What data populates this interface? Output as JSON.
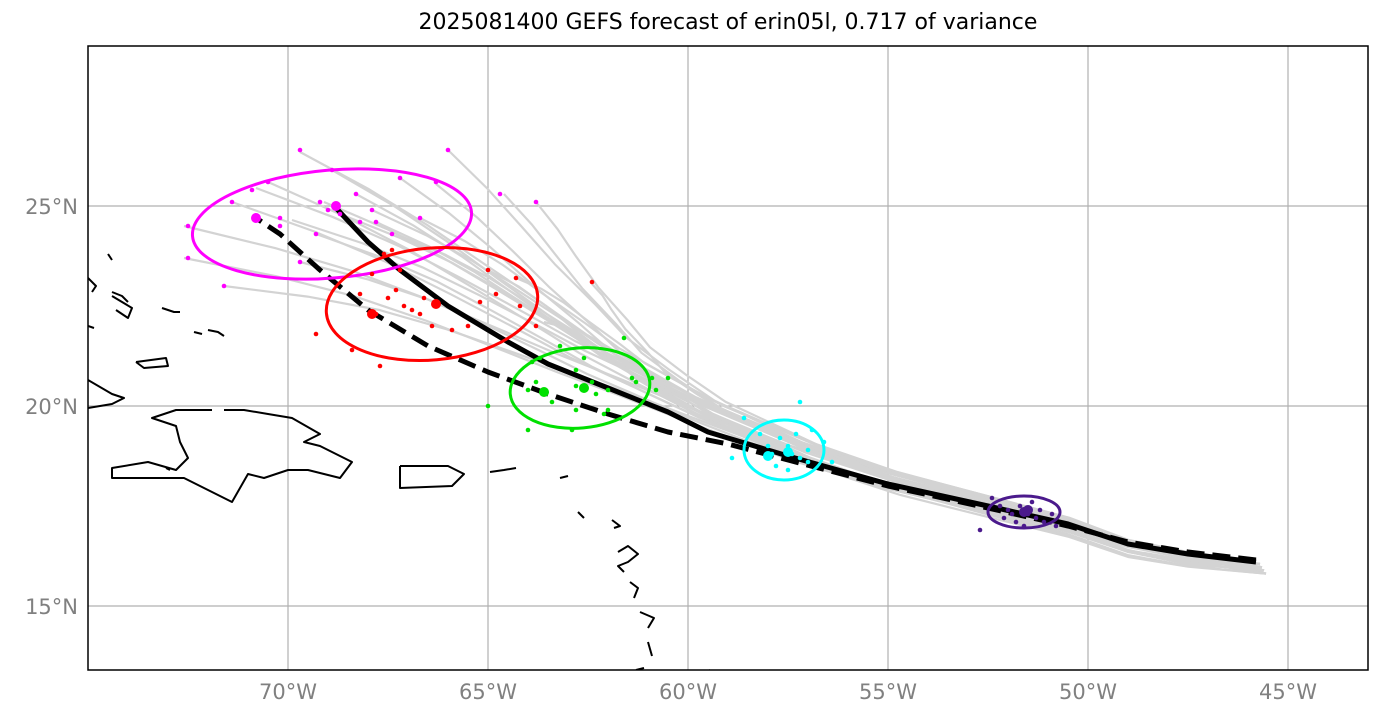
{
  "title": "2025081400 GEFS forecast of erin05l, 0.717 of variance",
  "map": {
    "lon_range": [
      -75,
      -43
    ],
    "lat_range": [
      13.4,
      29
    ],
    "grid": true,
    "lon_ticks": [
      {
        "value": -70,
        "label": "70°W"
      },
      {
        "value": -65,
        "label": "65°W"
      },
      {
        "value": -60,
        "label": "60°W"
      },
      {
        "value": -55,
        "label": "55°W"
      },
      {
        "value": -50,
        "label": "50°W"
      },
      {
        "value": -45,
        "label": "45°W"
      }
    ],
    "lat_ticks": [
      {
        "value": 25,
        "label": "25°N"
      },
      {
        "value": 20,
        "label": "20°N"
      },
      {
        "value": 15,
        "label": "15°N"
      }
    ],
    "colors": {
      "ensemble_track": "#d3d3d3",
      "mean_track": "#000000",
      "day1": "#4b1a8c",
      "day2": "#00ffff",
      "day3": "#00e000",
      "day4": "#ff0000",
      "day5": "#ff00ff",
      "coast": "#000000"
    },
    "mean_track_solid": [
      [
        -45.8,
        16.1
      ],
      [
        -47.5,
        16.3
      ],
      [
        -49,
        16.55
      ],
      [
        -50.5,
        17.05
      ],
      [
        -52.5,
        17.5
      ],
      [
        -55,
        18.05
      ],
      [
        -57.5,
        18.75
      ],
      [
        -59.5,
        19.35
      ],
      [
        -60.5,
        19.85
      ],
      [
        -62,
        20.45
      ],
      [
        -63.5,
        21.05
      ],
      [
        -64.5,
        21.6
      ],
      [
        -66,
        22.5
      ],
      [
        -67.2,
        23.4
      ],
      [
        -68,
        24.1
      ],
      [
        -68.8,
        24.95
      ]
    ],
    "mean_track_dashed": [
      [
        -45.8,
        16.15
      ],
      [
        -47.5,
        16.35
      ],
      [
        -49,
        16.6
      ],
      [
        -50.5,
        17.0
      ],
      [
        -52.5,
        17.45
      ],
      [
        -55,
        18.0
      ],
      [
        -57.5,
        18.65
      ],
      [
        -59,
        19.05
      ],
      [
        -60.5,
        19.35
      ],
      [
        -62,
        19.8
      ],
      [
        -63.5,
        20.3
      ],
      [
        -65,
        20.85
      ],
      [
        -66.5,
        21.5
      ],
      [
        -68,
        22.4
      ],
      [
        -69.2,
        23.4
      ],
      [
        -70.2,
        24.3
      ],
      [
        -70.8,
        24.7
      ]
    ],
    "ensemble_endpoints": [
      [
        -72.6,
        24.5
      ],
      [
        -72.6,
        23.7
      ],
      [
        -71.6,
        23.0
      ],
      [
        -71.4,
        25.1
      ],
      [
        -70.8,
        25.45
      ],
      [
        -70.5,
        25.6
      ],
      [
        -69.9,
        24.65
      ],
      [
        -69.7,
        23.6
      ],
      [
        -69.7,
        26.35
      ],
      [
        -69.3,
        24.3
      ],
      [
        -69.1,
        25.1
      ],
      [
        -68.9,
        25.9
      ],
      [
        -68.7,
        24.8
      ],
      [
        -68.3,
        25.3
      ],
      [
        -67.9,
        24.9
      ],
      [
        -67.8,
        24.6
      ],
      [
        -67.3,
        24.3
      ],
      [
        -67.2,
        25.7
      ],
      [
        -66.7,
        24.7
      ],
      [
        -66.3,
        25.55
      ],
      [
        -66.0,
        26.4
      ],
      [
        -64.6,
        25.3
      ],
      [
        -63.8,
        25.1
      ],
      [
        -65.0,
        23.4
      ],
      [
        -64.3,
        23.2
      ],
      [
        -63.6,
        22.1
      ],
      [
        -62.4,
        23.05
      ]
    ],
    "ellipses": [
      {
        "name": "day5",
        "center": [
          -68.9,
          24.55
        ],
        "rx_deg": 3.5,
        "ry_deg": 1.35,
        "angle": -5
      },
      {
        "name": "day4",
        "center": [
          -66.4,
          22.55
        ],
        "rx_deg": 2.65,
        "ry_deg": 1.4,
        "angle": -5
      },
      {
        "name": "day3",
        "center": [
          -62.7,
          20.45
        ],
        "rx_deg": 1.75,
        "ry_deg": 1.0,
        "angle": -5
      },
      {
        "name": "day2",
        "center": [
          -57.6,
          18.9
        ],
        "rx_deg": 1.0,
        "ry_deg": 0.75,
        "angle": 0
      },
      {
        "name": "day1",
        "center": [
          -51.6,
          17.35
        ],
        "rx_deg": 0.9,
        "ry_deg": 0.4,
        "angle": 0
      }
    ],
    "members": {
      "day5": [
        [
          -72.5,
          24.5
        ],
        [
          -72.5,
          23.7
        ],
        [
          -71.6,
          23.0
        ],
        [
          -71.4,
          25.1
        ],
        [
          -70.9,
          25.4
        ],
        [
          -70.5,
          25.6
        ],
        [
          -70.2,
          24.7
        ],
        [
          -70.2,
          24.5
        ],
        [
          -69.7,
          23.6
        ],
        [
          -69.7,
          26.4
        ],
        [
          -69.3,
          24.3
        ],
        [
          -69.2,
          25.1
        ],
        [
          -68.9,
          25.9
        ],
        [
          -68.7,
          24.8
        ],
        [
          -68.3,
          25.3
        ],
        [
          -67.9,
          24.9
        ],
        [
          -67.8,
          24.6
        ],
        [
          -67.4,
          24.3
        ],
        [
          -67.2,
          25.7
        ],
        [
          -66.7,
          24.7
        ],
        [
          -66.3,
          25.6
        ],
        [
          -66.0,
          26.4
        ],
        [
          -64.7,
          25.3
        ],
        [
          -63.8,
          25.1
        ],
        [
          -68.2,
          24.6
        ],
        [
          -69.0,
          24.9
        ]
      ],
      "day4": [
        [
          -69.3,
          21.8
        ],
        [
          -68.4,
          21.4
        ],
        [
          -67.7,
          21.0
        ],
        [
          -68.2,
          22.8
        ],
        [
          -67.9,
          23.3
        ],
        [
          -67.4,
          23.9
        ],
        [
          -67.2,
          23.4
        ],
        [
          -67.8,
          22.3
        ],
        [
          -67.5,
          22.7
        ],
        [
          -67.1,
          22.5
        ],
        [
          -66.9,
          22.4
        ],
        [
          -66.7,
          22.3
        ],
        [
          -66.4,
          22.0
        ],
        [
          -65.9,
          21.9
        ],
        [
          -66.6,
          22.7
        ],
        [
          -65.5,
          22.0
        ],
        [
          -65.2,
          22.6
        ],
        [
          -64.8,
          22.8
        ],
        [
          -64.2,
          22.5
        ],
        [
          -63.8,
          22.0
        ],
        [
          -65.0,
          23.4
        ],
        [
          -64.3,
          23.2
        ],
        [
          -62.4,
          23.1
        ],
        [
          -67.6,
          23.8
        ],
        [
          -67.3,
          22.9
        ]
      ],
      "day3": [
        [
          -65.0,
          20.0
        ],
        [
          -64.0,
          19.4
        ],
        [
          -63.8,
          20.6
        ],
        [
          -63.7,
          21.2
        ],
        [
          -63.4,
          20.1
        ],
        [
          -63.2,
          21.5
        ],
        [
          -62.9,
          19.4
        ],
        [
          -62.8,
          20.5
        ],
        [
          -62.8,
          19.9
        ],
        [
          -62.4,
          20.6
        ],
        [
          -62.6,
          21.2
        ],
        [
          -62.3,
          20.3
        ],
        [
          -62.0,
          20.4
        ],
        [
          -62.0,
          19.9
        ],
        [
          -61.6,
          21.7
        ],
        [
          -61.4,
          20.7
        ],
        [
          -61.3,
          20.6
        ],
        [
          -60.9,
          20.7
        ],
        [
          -60.8,
          20.4
        ],
        [
          -60.5,
          20.7
        ],
        [
          -62.8,
          20.9
        ],
        [
          -62.1,
          19.8
        ],
        [
          -63.9,
          21.1
        ],
        [
          -64.0,
          20.4
        ]
      ],
      "day2": [
        [
          -58.9,
          18.7
        ],
        [
          -58.6,
          19.7
        ],
        [
          -58.2,
          19.3
        ],
        [
          -58.0,
          19.0
        ],
        [
          -57.9,
          18.8
        ],
        [
          -57.7,
          19.2
        ],
        [
          -57.5,
          19.0
        ],
        [
          -57.5,
          18.4
        ],
        [
          -57.4,
          18.8
        ],
        [
          -57.2,
          18.7
        ],
        [
          -57.0,
          18.9
        ],
        [
          -56.9,
          19.4
        ],
        [
          -56.6,
          19.1
        ],
        [
          -56.4,
          18.6
        ],
        [
          -57.2,
          20.1
        ],
        [
          -57.8,
          18.5
        ],
        [
          -57.0,
          18.6
        ],
        [
          -57.3,
          19.3
        ]
      ],
      "day1": [
        [
          -52.7,
          16.9
        ],
        [
          -52.4,
          17.7
        ],
        [
          -52.2,
          17.5
        ],
        [
          -52.0,
          17.4
        ],
        [
          -51.9,
          17.3
        ],
        [
          -51.8,
          17.1
        ],
        [
          -51.7,
          17.5
        ],
        [
          -51.6,
          17.0
        ],
        [
          -51.4,
          17.6
        ],
        [
          -51.3,
          17.2
        ],
        [
          -51.2,
          17.4
        ],
        [
          -51.1,
          17.1
        ],
        [
          -50.9,
          17.3
        ],
        [
          -50.8,
          17.0
        ],
        [
          -51.5,
          17.3
        ],
        [
          -52.1,
          17.2
        ]
      ]
    },
    "mean_markers": [
      {
        "day": "day5",
        "solid": [
          -68.8,
          25.0
        ],
        "dashed": [
          -70.8,
          24.7
        ]
      },
      {
        "day": "day4",
        "solid": [
          -66.3,
          22.55
        ],
        "dashed": [
          -67.9,
          22.3
        ]
      },
      {
        "day": "day3",
        "solid": [
          -62.6,
          20.45
        ],
        "dashed": [
          -63.6,
          20.35
        ]
      },
      {
        "day": "day2",
        "solid": [
          -57.5,
          18.85
        ],
        "dashed": [
          -58.0,
          18.75
        ]
      },
      {
        "day": "day1",
        "solid": [
          -51.6,
          17.35
        ],
        "dashed": [
          -51.5,
          17.4
        ]
      }
    ],
    "coastlines": {
      "hispaniola": [
        [
          -71.9,
          19.9
        ],
        [
          -72.8,
          19.9
        ],
        [
          -73.4,
          19.7
        ],
        [
          -72.8,
          19.5
        ],
        [
          -72.7,
          19.1
        ],
        [
          -72.5,
          18.7
        ],
        [
          -72.8,
          18.4
        ],
        [
          -73.5,
          18.6
        ],
        [
          -74.4,
          18.45
        ],
        [
          -74.4,
          18.2
        ],
        [
          -73.5,
          18.2
        ],
        [
          -72.6,
          18.2
        ],
        [
          -71.4,
          17.6
        ],
        [
          -71.0,
          18.3
        ],
        [
          -70.6,
          18.2
        ],
        [
          -70.0,
          18.4
        ],
        [
          -69.5,
          18.4
        ],
        [
          -68.7,
          18.2
        ],
        [
          -68.4,
          18.6
        ],
        [
          -69.2,
          19.0
        ],
        [
          -69.6,
          19.1
        ],
        [
          -69.2,
          19.3
        ],
        [
          -69.9,
          19.7
        ],
        [
          -70.5,
          19.8
        ],
        [
          -71.1,
          19.9
        ],
        [
          -71.6,
          19.9
        ]
      ],
      "puerto_rico": [
        [
          -67.2,
          18.5
        ],
        [
          -66.0,
          18.5
        ],
        [
          -65.6,
          18.3
        ],
        [
          -65.9,
          18.0
        ],
        [
          -67.2,
          17.95
        ],
        [
          -67.2,
          18.5
        ]
      ],
      "cuba_tip": [
        [
          -75,
          20.65
        ],
        [
          -74.4,
          20.3
        ],
        [
          -74.1,
          20.2
        ],
        [
          -74.4,
          20.05
        ],
        [
          -75,
          19.95
        ]
      ],
      "great_inagua": [
        [
          -73.8,
          21.1
        ],
        [
          -73.05,
          21.2
        ],
        [
          -73.0,
          21.0
        ],
        [
          -73.6,
          20.95
        ],
        [
          -73.8,
          21.1
        ]
      ],
      "acklins": [
        [
          -74.4,
          22.75
        ],
        [
          -73.9,
          22.45
        ],
        [
          -74.0,
          22.2
        ],
        [
          -74.3,
          22.4
        ]
      ],
      "crooked": [
        [
          -74.4,
          22.85
        ],
        [
          -74.15,
          22.75
        ],
        [
          -74.0,
          22.6
        ]
      ],
      "mayaguana": [
        [
          -73.15,
          22.45
        ],
        [
          -72.85,
          22.35
        ],
        [
          -72.7,
          22.35
        ]
      ],
      "turks": [
        [
          -72.0,
          21.9
        ],
        [
          -71.75,
          21.85
        ],
        [
          -71.6,
          21.75
        ]
      ],
      "caicos": [
        [
          -72.35,
          21.85
        ],
        [
          -72.15,
          21.8
        ]
      ],
      "long_island": [
        [
          -75,
          23.2
        ],
        [
          -74.8,
          23.0
        ],
        [
          -74.9,
          22.85
        ]
      ],
      "andros_bit": [
        [
          -75,
          22.0
        ],
        [
          -74.85,
          21.95
        ]
      ],
      "exuma": [
        [
          -74.5,
          23.8
        ],
        [
          -74.4,
          23.65
        ]
      ],
      "navassa": [
        [
          -73.05,
          18.45
        ],
        [
          -72.95,
          18.4
        ]
      ],
      "virgin_islands": [
        [
          -64.95,
          18.35
        ],
        [
          -64.6,
          18.4
        ],
        [
          -64.3,
          18.45
        ]
      ],
      "anguilla": [
        [
          -63.2,
          18.2
        ],
        [
          -63.0,
          18.25
        ]
      ],
      "st_kitts": [
        [
          -62.75,
          17.35
        ],
        [
          -62.6,
          17.2
        ]
      ],
      "antigua": [
        [
          -61.9,
          17.15
        ],
        [
          -61.7,
          17.0
        ],
        [
          -61.85,
          16.95
        ]
      ],
      "guadeloupe": [
        [
          -61.75,
          16.35
        ],
        [
          -61.5,
          16.5
        ],
        [
          -61.25,
          16.3
        ],
        [
          -61.5,
          16.1
        ],
        [
          -61.75,
          16.0
        ],
        [
          -61.6,
          15.85
        ]
      ],
      "dominica": [
        [
          -61.45,
          15.6
        ],
        [
          -61.25,
          15.45
        ],
        [
          -61.35,
          15.2
        ]
      ],
      "martinique": [
        [
          -61.2,
          14.85
        ],
        [
          -60.85,
          14.7
        ],
        [
          -61.0,
          14.45
        ]
      ],
      "st_lucia": [
        [
          -61.0,
          14.1
        ],
        [
          -60.9,
          13.75
        ]
      ],
      "st_vincent": [
        [
          -61.3,
          13.4
        ],
        [
          -61.1,
          13.45
        ]
      ],
      "barbados": [
        [
          -59.6,
          13.3
        ],
        [
          -59.45,
          13.4
        ]
      ]
    }
  }
}
